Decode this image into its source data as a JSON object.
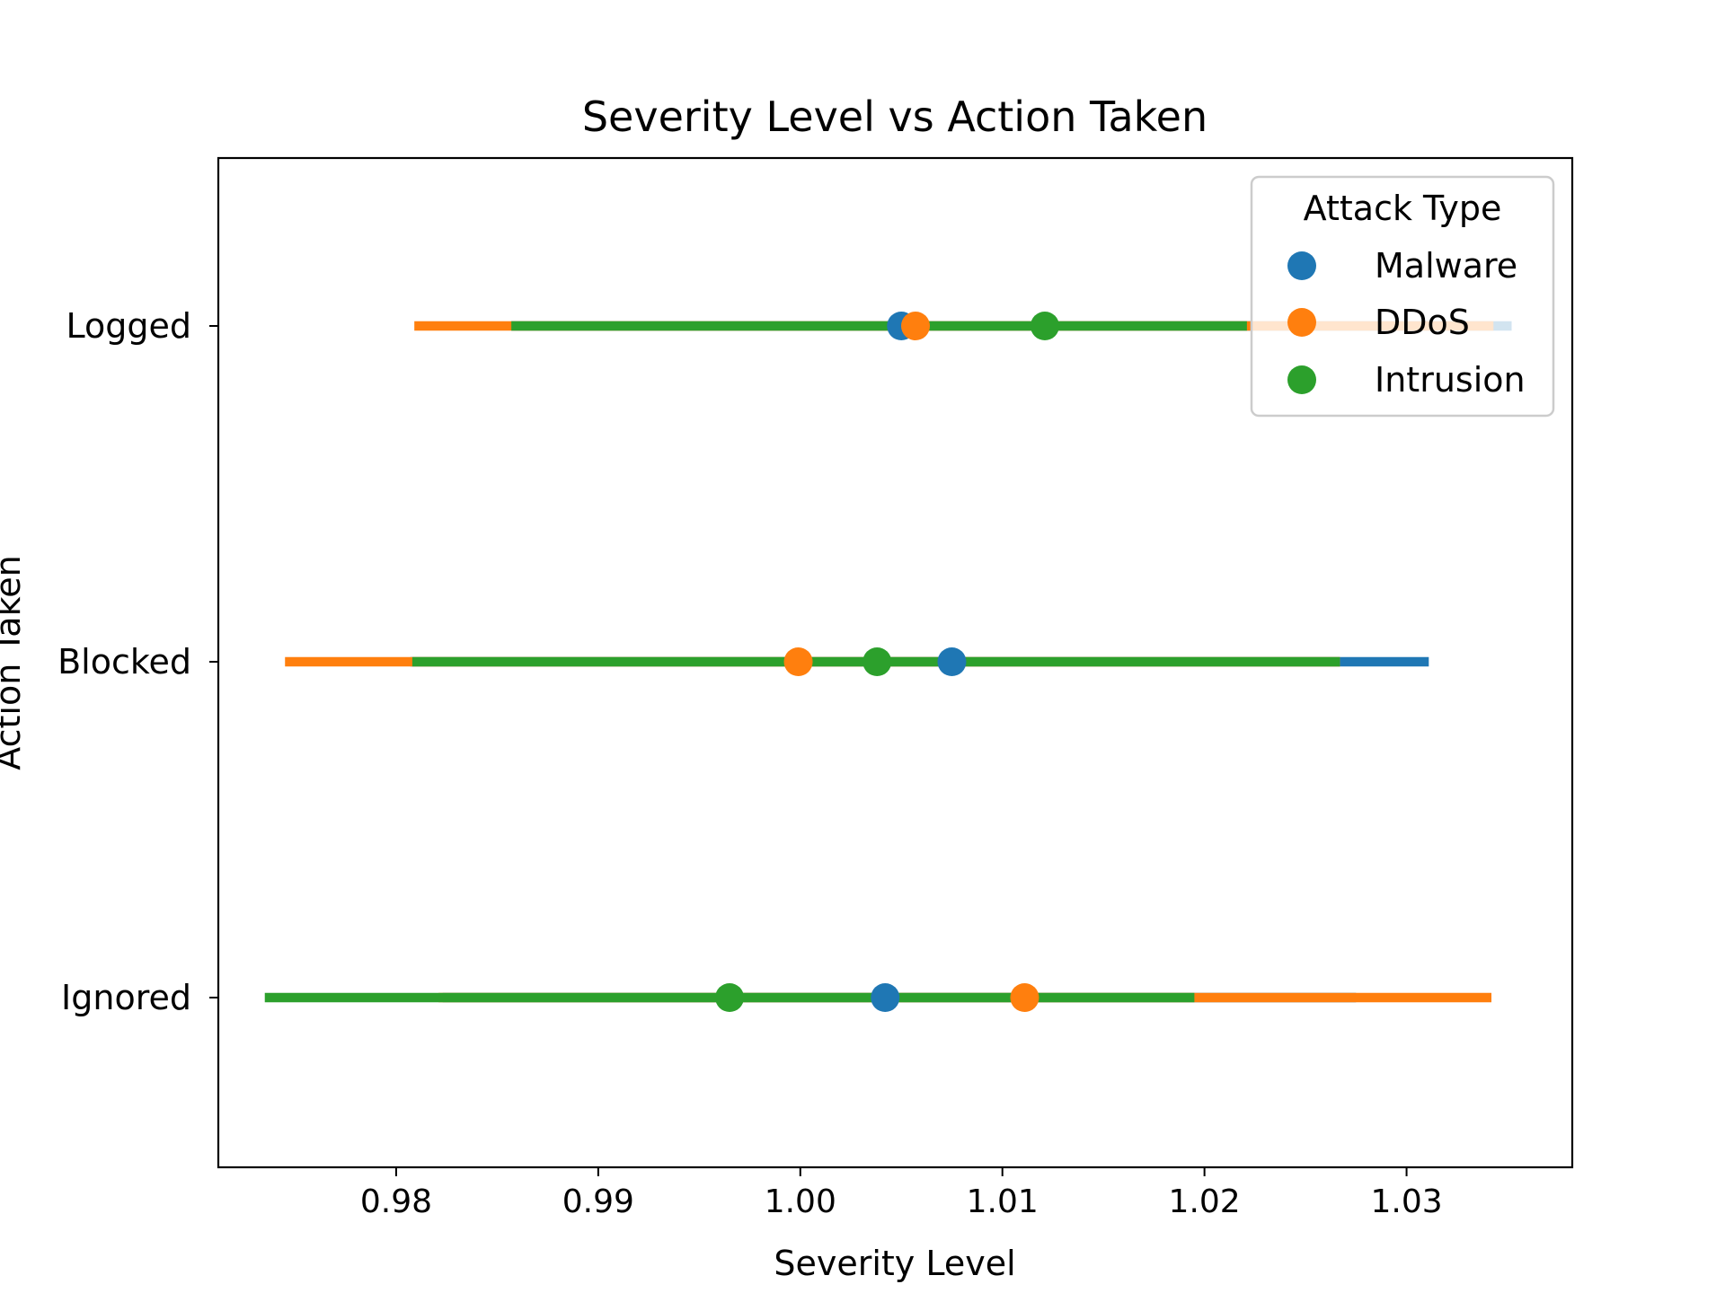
{
  "chart_data": {
    "type": "pointplot",
    "title": "Severity Level vs Action Taken",
    "xlabel": "Severity Level",
    "ylabel": "Action Taken",
    "xlim": [
      0.9712,
      1.0382
    ],
    "x_ticks": [
      0.98,
      0.99,
      1.0,
      1.01,
      1.02,
      1.03
    ],
    "x_tick_labels": [
      "0.98",
      "0.99",
      "1.00",
      "1.01",
      "1.02",
      "1.03"
    ],
    "categories": [
      "Logged",
      "Blocked",
      "Ignored"
    ],
    "legend": {
      "title": "Attack Type",
      "position": "top-right"
    },
    "series": [
      {
        "name": "Malware",
        "color": "#1f77b4",
        "values": [
          1.005,
          1.0075,
          1.0042
        ],
        "ci_low": [
          0.9857,
          0.9807,
          0.9823
        ],
        "ci_high": [
          1.0352,
          1.0311,
          1.0275
        ]
      },
      {
        "name": "DDoS",
        "color": "#ff7f0e",
        "values": [
          1.0057,
          0.9999,
          1.0111
        ],
        "ci_low": [
          0.9809,
          0.9745,
          0.9821
        ],
        "ci_high": [
          1.0343,
          1.0267,
          1.0342
        ]
      },
      {
        "name": "Intrusion",
        "color": "#2ca02c",
        "values": [
          1.0121,
          1.0038,
          0.9965
        ],
        "ci_low": [
          0.9857,
          0.9808,
          0.9735
        ],
        "ci_high": [
          1.0221,
          1.0267,
          1.0195
        ]
      }
    ]
  }
}
